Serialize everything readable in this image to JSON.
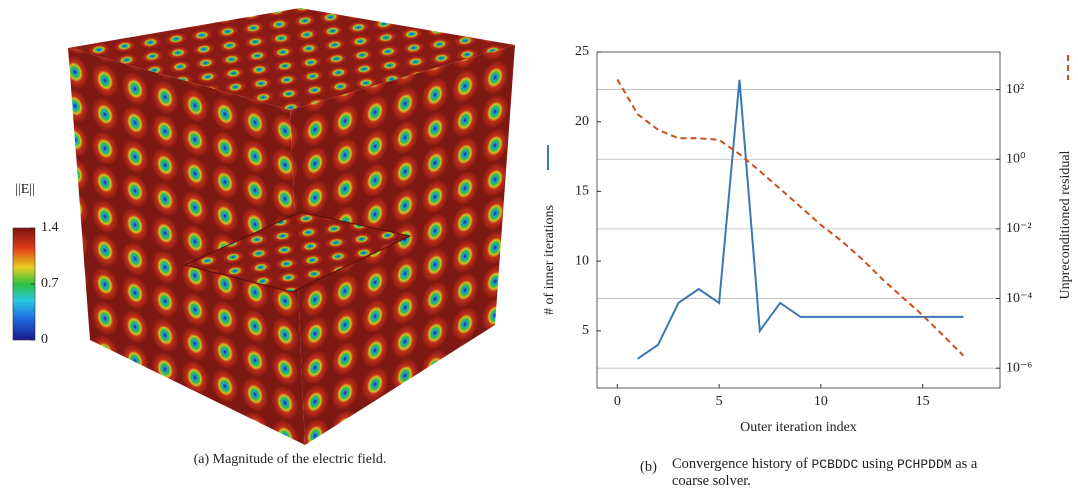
{
  "figure_a": {
    "caption": "(a) Magnitude of the electric field.",
    "colorbar_label": "||E||",
    "colorbar_range": [
      0,
      1.4
    ],
    "colorbar_ticks": [
      0,
      0.7,
      1.4
    ]
  },
  "chart_data": {
    "type": "line",
    "caption_label": "(b)",
    "caption_parts": [
      "Convergence history of ",
      "PCBDDC",
      " using ",
      "PCHPDDM",
      " as a coarse solver."
    ],
    "x_label": "Outer iteration index",
    "y_label": "# of inner iterations",
    "y2_label": "Unpreconditioned residual",
    "xlim": [
      -1,
      18.8
    ],
    "xticks": [
      0,
      5,
      10,
      15
    ],
    "ylim": [
      0.9,
      25
    ],
    "yticks": [
      5,
      10,
      15,
      20,
      25
    ],
    "y2lim": [
      2.7e-07,
      1200
    ],
    "y2_log": true,
    "grid": "y2",
    "y2ticks": [
      {
        "value": 1e-06,
        "label": "10⁻⁶"
      },
      {
        "value": 0.0001,
        "label": "10⁻⁴"
      },
      {
        "value": 0.01,
        "label": "10⁻²"
      },
      {
        "value": 1,
        "label": "10⁰"
      },
      {
        "value": 100,
        "label": "10²"
      }
    ],
    "series": [
      {
        "name": "# of inner iterations",
        "color": "#3a78b4",
        "dash": false,
        "x": [
          1,
          2,
          3,
          4,
          5,
          6,
          7,
          8,
          9,
          10,
          11,
          12,
          13,
          14,
          15,
          16,
          17
        ],
        "values": [
          3,
          4,
          7,
          8,
          7,
          23,
          5,
          7,
          6,
          6,
          6,
          6,
          6,
          6,
          6,
          6,
          6
        ]
      },
      {
        "name": "Unpreconditioned residual",
        "color": "#c8501a",
        "dash": true,
        "axis": "y2",
        "x": [
          0,
          1,
          2,
          3,
          4,
          5,
          6,
          7,
          8,
          9,
          10,
          11,
          12,
          13,
          14,
          15,
          16,
          17
        ],
        "values": [
          195,
          19.5,
          7,
          4,
          4,
          3.6,
          1.4,
          0.46,
          0.14,
          0.043,
          0.013,
          0.0046,
          0.0014,
          0.00037,
          0.00011,
          3.3e-05,
          8.8e-06,
          2.3e-06
        ]
      }
    ]
  }
}
